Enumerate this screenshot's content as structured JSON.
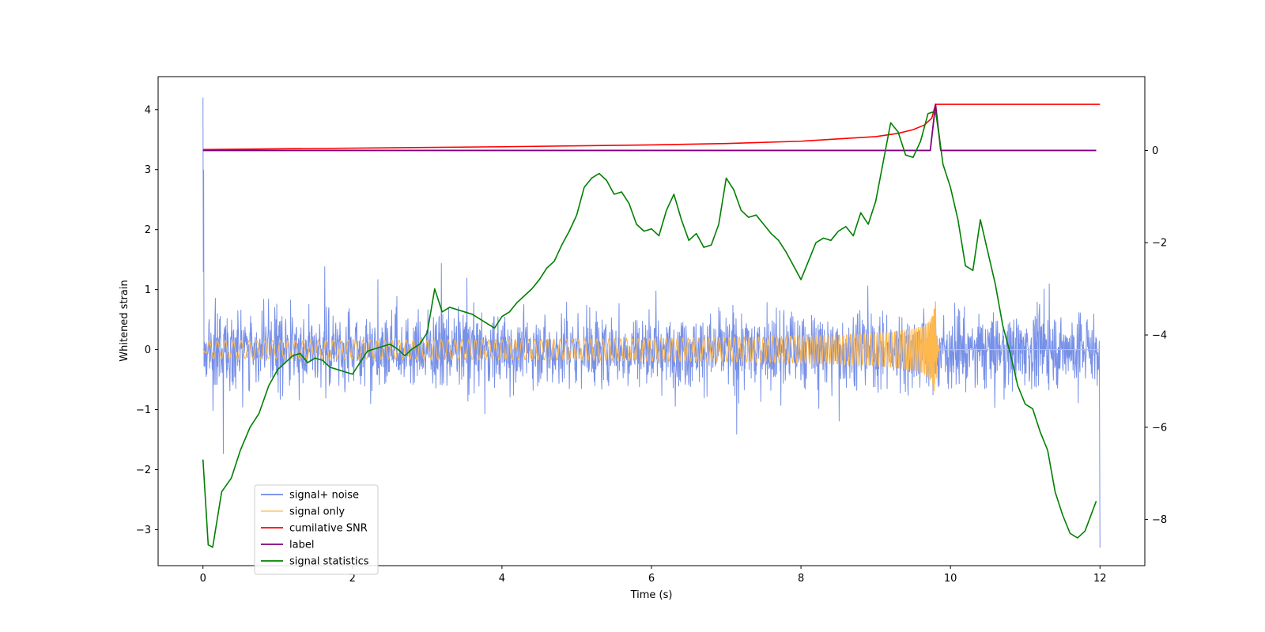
{
  "chart_data": {
    "type": "line",
    "title": "",
    "xlabel": "Time (s)",
    "ylabel": "Whitened strain",
    "ylabel_right": "",
    "xlim": [
      -0.6,
      12.6
    ],
    "ylim": [
      -3.6,
      4.55
    ],
    "ylim_right": [
      -9.0,
      1.6
    ],
    "x_ticks": [
      0,
      2,
      4,
      6,
      8,
      10,
      12
    ],
    "y_ticks": [
      -3,
      -2,
      -1,
      0,
      1,
      2,
      3,
      4
    ],
    "y_ticks_right": [
      -8,
      -6,
      -4,
      -2,
      0
    ],
    "grid": false,
    "legend_position": "lower-left",
    "colors": {
      "noise": "#6b87e6",
      "signal": "#ffb84d",
      "snr": "#ff0000",
      "label": "#800080",
      "stat": "#008000"
    },
    "series": [
      {
        "name": "signal+ noise",
        "axis": "left",
        "color": "#6b87e6",
        "description_values": {
          "t_start": 0,
          "t_end": 12,
          "typical_range": [
            -1.5,
            1.9
          ],
          "spike_at_0": 4.2,
          "min_near_12": -3.3
        }
      },
      {
        "name": "signal only",
        "axis": "left",
        "color": "#ffb84d",
        "description_values": {
          "t_start": 0,
          "t_end": 12,
          "merger_time": 9.8,
          "peak_amplitude": 1.1
        }
      },
      {
        "name": "cumilative SNR",
        "axis": "right",
        "x": [
          0,
          2,
          4,
          6,
          7,
          8,
          8.5,
          9,
          9.3,
          9.5,
          9.65,
          9.75,
          9.8,
          9.82,
          10,
          11,
          12
        ],
        "values": [
          0.02,
          0.05,
          0.08,
          0.12,
          0.15,
          0.2,
          0.25,
          0.3,
          0.37,
          0.45,
          0.55,
          0.7,
          1.0,
          1.0,
          1.0,
          1.0,
          1.0
        ]
      },
      {
        "name": "label",
        "axis": "right",
        "x": [
          0,
          9.73,
          9.8,
          9.87,
          11.95
        ],
        "values": [
          0,
          0,
          1,
          0,
          0
        ]
      },
      {
        "name": "signal statistics",
        "axis": "right",
        "x": [
          0.0,
          0.07,
          0.13,
          0.25,
          0.38,
          0.5,
          0.63,
          0.75,
          0.88,
          1.0,
          1.1,
          1.2,
          1.3,
          1.4,
          1.5,
          1.6,
          1.7,
          1.8,
          1.9,
          2.0,
          2.1,
          2.2,
          2.3,
          2.4,
          2.5,
          2.6,
          2.7,
          2.8,
          2.9,
          3.0,
          3.1,
          3.2,
          3.3,
          3.4,
          3.5,
          3.6,
          3.7,
          3.8,
          3.9,
          4.0,
          4.1,
          4.2,
          4.3,
          4.4,
          4.5,
          4.6,
          4.7,
          4.8,
          4.9,
          5.0,
          5.1,
          5.2,
          5.3,
          5.4,
          5.5,
          5.6,
          5.7,
          5.8,
          5.9,
          6.0,
          6.1,
          6.2,
          6.3,
          6.4,
          6.5,
          6.6,
          6.7,
          6.8,
          6.9,
          7.0,
          7.1,
          7.2,
          7.3,
          7.4,
          7.5,
          7.6,
          7.7,
          7.8,
          7.9,
          8.0,
          8.1,
          8.2,
          8.3,
          8.4,
          8.5,
          8.6,
          8.7,
          8.8,
          8.9,
          9.0,
          9.1,
          9.2,
          9.3,
          9.4,
          9.5,
          9.6,
          9.7,
          9.8,
          9.85,
          9.9,
          10.0,
          10.1,
          10.2,
          10.3,
          10.4,
          10.5,
          10.6,
          10.7,
          10.8,
          10.9,
          11.0,
          11.1,
          11.2,
          11.3,
          11.4,
          11.5,
          11.6,
          11.7,
          11.8,
          11.95
        ],
        "values": [
          -6.7,
          -8.55,
          -8.6,
          -7.4,
          -7.1,
          -6.5,
          -6.0,
          -5.7,
          -5.1,
          -4.75,
          -4.6,
          -4.45,
          -4.4,
          -4.6,
          -4.5,
          -4.55,
          -4.7,
          -4.75,
          -4.8,
          -4.85,
          -4.6,
          -4.35,
          -4.3,
          -4.25,
          -4.2,
          -4.3,
          -4.45,
          -4.3,
          -4.2,
          -3.95,
          -3.0,
          -3.5,
          -3.4,
          -3.45,
          -3.5,
          -3.55,
          -3.65,
          -3.75,
          -3.85,
          -3.6,
          -3.5,
          -3.3,
          -3.15,
          -3.0,
          -2.8,
          -2.55,
          -2.4,
          -2.05,
          -1.75,
          -1.4,
          -0.8,
          -0.6,
          -0.5,
          -0.65,
          -0.95,
          -0.9,
          -1.15,
          -1.6,
          -1.75,
          -1.7,
          -1.85,
          -1.3,
          -0.95,
          -1.5,
          -1.95,
          -1.8,
          -2.1,
          -2.05,
          -1.6,
          -0.6,
          -0.85,
          -1.3,
          -1.45,
          -1.4,
          -1.6,
          -1.8,
          -1.95,
          -2.2,
          -2.5,
          -2.8,
          -2.4,
          -2.0,
          -1.9,
          -1.95,
          -1.75,
          -1.65,
          -1.85,
          -1.35,
          -1.6,
          -1.1,
          -0.25,
          0.6,
          0.4,
          -0.1,
          -0.15,
          0.2,
          0.8,
          0.85,
          0.3,
          -0.3,
          -0.8,
          -1.5,
          -2.5,
          -2.6,
          -1.5,
          -2.2,
          -2.9,
          -3.8,
          -4.4,
          -5.1,
          -5.5,
          -5.6,
          -6.1,
          -6.5,
          -7.4,
          -7.9,
          -8.3,
          -8.4,
          -8.25,
          -7.6
        ]
      }
    ]
  }
}
